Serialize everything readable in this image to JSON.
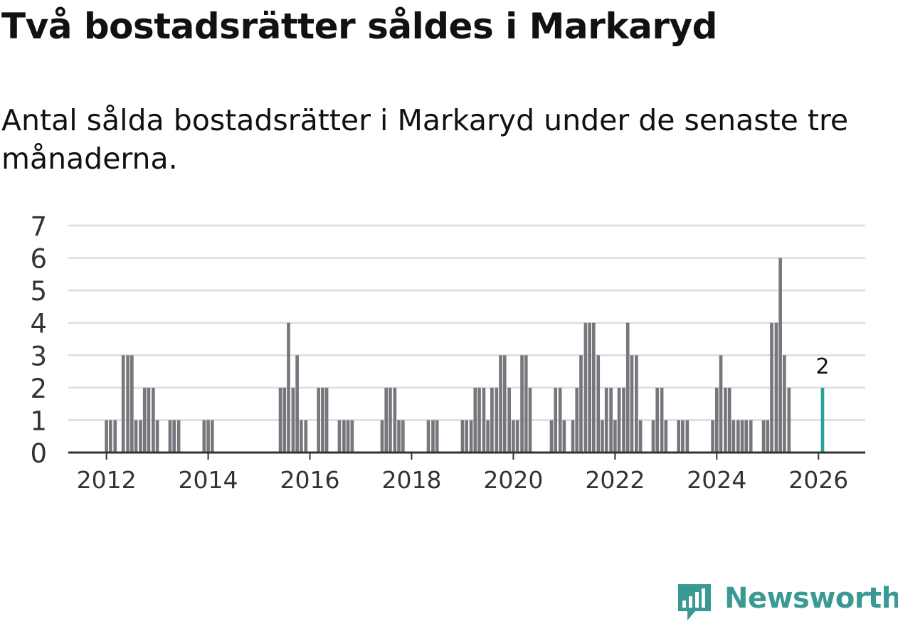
{
  "title": "Två bostadsrätter såldes i Markaryd",
  "subtitle": "Antal sålda bostadsrätter i Markaryd under de senaste tre månaderna.",
  "brand": {
    "name": "Newsworthy",
    "logo_icon": "bar-chart-speech-bubble-icon"
  },
  "colors": {
    "bar": "#76767c",
    "highlight": "#22a39a",
    "grid": "#dcdcdc",
    "axis": "#333333",
    "brand": "#3a9a93"
  },
  "chart_data": {
    "type": "bar",
    "title": "Två bostadsrätter såldes i Markaryd",
    "xlabel": "",
    "ylabel": "",
    "ylim": [
      0,
      7
    ],
    "y_ticks": [
      0,
      1,
      2,
      3,
      4,
      5,
      6,
      7
    ],
    "x_range": [
      2011.25,
      2026.92
    ],
    "x_ticks": [
      2012,
      2014,
      2016,
      2018,
      2020,
      2022,
      2024,
      2026
    ],
    "x_tick_labels": [
      "2012",
      "2014",
      "2016",
      "2018",
      "2020",
      "2022",
      "2024",
      "2026"
    ],
    "grid": true,
    "series": [
      {
        "name": "Antal sålda bostadsrätter",
        "points": [
          {
            "x": 2012.0,
            "y": 1
          },
          {
            "x": 2012.08,
            "y": 1
          },
          {
            "x": 2012.17,
            "y": 1
          },
          {
            "x": 2012.33,
            "y": 3
          },
          {
            "x": 2012.42,
            "y": 3
          },
          {
            "x": 2012.5,
            "y": 3
          },
          {
            "x": 2012.58,
            "y": 1
          },
          {
            "x": 2012.67,
            "y": 1
          },
          {
            "x": 2012.75,
            "y": 2
          },
          {
            "x": 2012.83,
            "y": 2
          },
          {
            "x": 2012.92,
            "y": 2
          },
          {
            "x": 2013.0,
            "y": 1
          },
          {
            "x": 2013.25,
            "y": 1
          },
          {
            "x": 2013.33,
            "y": 1
          },
          {
            "x": 2013.42,
            "y": 1
          },
          {
            "x": 2013.92,
            "y": 1
          },
          {
            "x": 2014.0,
            "y": 1
          },
          {
            "x": 2014.08,
            "y": 1
          },
          {
            "x": 2015.42,
            "y": 2
          },
          {
            "x": 2015.5,
            "y": 2
          },
          {
            "x": 2015.58,
            "y": 4
          },
          {
            "x": 2015.67,
            "y": 2
          },
          {
            "x": 2015.75,
            "y": 3
          },
          {
            "x": 2015.83,
            "y": 1
          },
          {
            "x": 2015.92,
            "y": 1
          },
          {
            "x": 2016.17,
            "y": 2
          },
          {
            "x": 2016.25,
            "y": 2
          },
          {
            "x": 2016.33,
            "y": 2
          },
          {
            "x": 2016.58,
            "y": 1
          },
          {
            "x": 2016.67,
            "y": 1
          },
          {
            "x": 2016.75,
            "y": 1
          },
          {
            "x": 2016.83,
            "y": 1
          },
          {
            "x": 2017.42,
            "y": 1
          },
          {
            "x": 2017.5,
            "y": 2
          },
          {
            "x": 2017.58,
            "y": 2
          },
          {
            "x": 2017.67,
            "y": 2
          },
          {
            "x": 2017.75,
            "y": 1
          },
          {
            "x": 2017.83,
            "y": 1
          },
          {
            "x": 2018.33,
            "y": 1
          },
          {
            "x": 2018.42,
            "y": 1
          },
          {
            "x": 2018.5,
            "y": 1
          },
          {
            "x": 2019.0,
            "y": 1
          },
          {
            "x": 2019.08,
            "y": 1
          },
          {
            "x": 2019.17,
            "y": 1
          },
          {
            "x": 2019.25,
            "y": 2
          },
          {
            "x": 2019.33,
            "y": 2
          },
          {
            "x": 2019.42,
            "y": 2
          },
          {
            "x": 2019.5,
            "y": 1
          },
          {
            "x": 2019.58,
            "y": 2
          },
          {
            "x": 2019.67,
            "y": 2
          },
          {
            "x": 2019.75,
            "y": 3
          },
          {
            "x": 2019.83,
            "y": 3
          },
          {
            "x": 2019.92,
            "y": 2
          },
          {
            "x": 2020.0,
            "y": 1
          },
          {
            "x": 2020.08,
            "y": 1
          },
          {
            "x": 2020.17,
            "y": 3
          },
          {
            "x": 2020.25,
            "y": 3
          },
          {
            "x": 2020.33,
            "y": 2
          },
          {
            "x": 2020.75,
            "y": 1
          },
          {
            "x": 2020.83,
            "y": 2
          },
          {
            "x": 2020.92,
            "y": 2
          },
          {
            "x": 2021.0,
            "y": 1
          },
          {
            "x": 2021.17,
            "y": 1
          },
          {
            "x": 2021.25,
            "y": 2
          },
          {
            "x": 2021.33,
            "y": 3
          },
          {
            "x": 2021.42,
            "y": 4
          },
          {
            "x": 2021.5,
            "y": 4
          },
          {
            "x": 2021.58,
            "y": 4
          },
          {
            "x": 2021.67,
            "y": 3
          },
          {
            "x": 2021.75,
            "y": 1
          },
          {
            "x": 2021.83,
            "y": 2
          },
          {
            "x": 2021.92,
            "y": 2
          },
          {
            "x": 2022.0,
            "y": 1
          },
          {
            "x": 2022.08,
            "y": 2
          },
          {
            "x": 2022.17,
            "y": 2
          },
          {
            "x": 2022.25,
            "y": 4
          },
          {
            "x": 2022.33,
            "y": 3
          },
          {
            "x": 2022.42,
            "y": 3
          },
          {
            "x": 2022.5,
            "y": 1
          },
          {
            "x": 2022.75,
            "y": 1
          },
          {
            "x": 2022.83,
            "y": 2
          },
          {
            "x": 2022.92,
            "y": 2
          },
          {
            "x": 2023.0,
            "y": 1
          },
          {
            "x": 2023.25,
            "y": 1
          },
          {
            "x": 2023.33,
            "y": 1
          },
          {
            "x": 2023.42,
            "y": 1
          },
          {
            "x": 2023.92,
            "y": 1
          },
          {
            "x": 2024.0,
            "y": 2
          },
          {
            "x": 2024.08,
            "y": 3
          },
          {
            "x": 2024.17,
            "y": 2
          },
          {
            "x": 2024.25,
            "y": 2
          },
          {
            "x": 2024.33,
            "y": 1
          },
          {
            "x": 2024.42,
            "y": 1
          },
          {
            "x": 2024.5,
            "y": 1
          },
          {
            "x": 2024.58,
            "y": 1
          },
          {
            "x": 2024.67,
            "y": 1
          },
          {
            "x": 2024.92,
            "y": 1
          },
          {
            "x": 2025.0,
            "y": 1
          },
          {
            "x": 2025.08,
            "y": 4
          },
          {
            "x": 2025.17,
            "y": 4
          },
          {
            "x": 2025.25,
            "y": 6
          },
          {
            "x": 2025.33,
            "y": 3
          },
          {
            "x": 2025.42,
            "y": 2
          }
        ]
      }
    ],
    "highlight": {
      "x": 2026.08,
      "y": 2,
      "label": "2"
    },
    "bar_width_years": 0.0833
  }
}
